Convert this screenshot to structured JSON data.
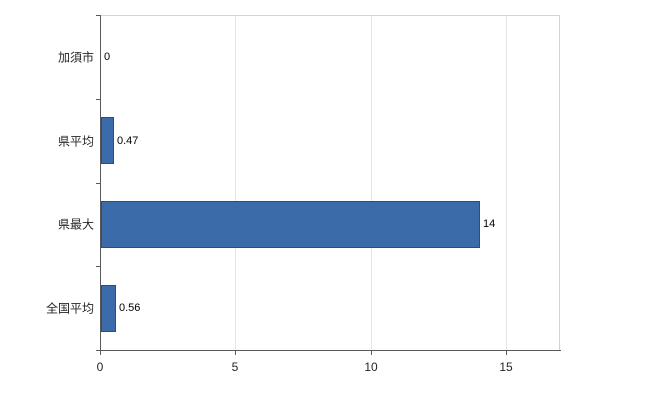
{
  "chart_data": {
    "type": "bar",
    "orientation": "horizontal",
    "title": "",
    "categories": [
      "加須市",
      "県平均",
      "県最大",
      "全国平均"
    ],
    "values": [
      0,
      0.47,
      14,
      0.56
    ],
    "value_labels": [
      "0",
      "0.47",
      "14",
      "0.56"
    ],
    "xlabel": "",
    "ylabel": "",
    "xlim": [
      0,
      17
    ],
    "xticks": [
      0,
      5,
      10,
      15
    ],
    "xtick_labels": [
      "0",
      "5",
      "10",
      "15"
    ],
    "grid": true,
    "legend": "none",
    "bar_color": "#3b6ba8",
    "bar_border_color": "#2a4d7a",
    "axis_color": "#595959",
    "gridline_color": "#e3e3e3"
  }
}
